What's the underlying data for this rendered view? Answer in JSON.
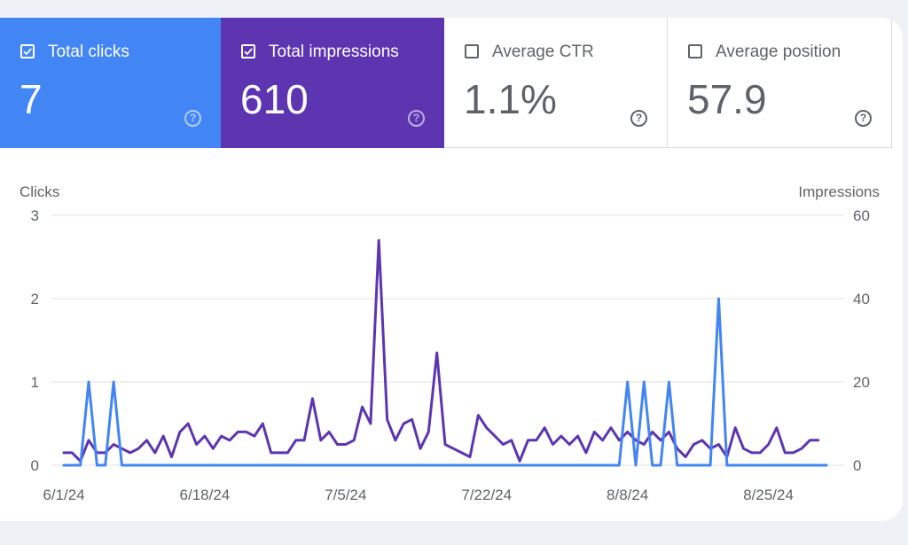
{
  "metrics": [
    {
      "label": "Total clicks",
      "value": "7",
      "checked": true,
      "color": "#4285f4"
    },
    {
      "label": "Total impressions",
      "value": "610",
      "checked": true,
      "color": "#5e35b1"
    },
    {
      "label": "Average CTR",
      "value": "1.1%",
      "checked": false
    },
    {
      "label": "Average position",
      "value": "57.9",
      "checked": false
    }
  ],
  "help_glyph": "?",
  "colors": {
    "clicks": "#4285f4",
    "impressions": "#5e35b1",
    "grid": "#e0e0e0"
  },
  "chart_data": {
    "type": "line",
    "xlabel": "",
    "ylabel": "Clicks",
    "y2label": "Impressions",
    "ylim": [
      0,
      3
    ],
    "y2lim": [
      0,
      60
    ],
    "yticks": [
      0,
      1,
      2,
      3
    ],
    "y2ticks": [
      0,
      20,
      40,
      60
    ],
    "x_tick_labels": [
      "6/1/24",
      "6/18/24",
      "7/5/24",
      "7/22/24",
      "8/8/24",
      "8/25/24"
    ],
    "x_tick_index": [
      0,
      17,
      34,
      51,
      68,
      85
    ],
    "grid": true,
    "series": [
      {
        "name": "Clicks",
        "axis": "left",
        "color": "#4285f4",
        "values": [
          0,
          0,
          0,
          1,
          0,
          0,
          1,
          0,
          0,
          0,
          0,
          0,
          0,
          0,
          0,
          0,
          0,
          0,
          0,
          0,
          0,
          0,
          0,
          0,
          0,
          0,
          0,
          0,
          0,
          0,
          0,
          0,
          0,
          0,
          0,
          0,
          0,
          0,
          0,
          0,
          0,
          0,
          0,
          0,
          0,
          0,
          0,
          0,
          0,
          0,
          0,
          0,
          0,
          0,
          0,
          0,
          0,
          0,
          0,
          0,
          0,
          0,
          0,
          0,
          0,
          0,
          0,
          0,
          1,
          0,
          1,
          0,
          0,
          1,
          0,
          0,
          0,
          0,
          0,
          2,
          0,
          0,
          0,
          0,
          0,
          0,
          0,
          0,
          0,
          0,
          0,
          0,
          0
        ]
      },
      {
        "name": "Impressions",
        "axis": "right",
        "color": "#5e35b1",
        "values": [
          3,
          3,
          1,
          6,
          3,
          3,
          5,
          4,
          3,
          4,
          6,
          3,
          7,
          2,
          8,
          10,
          5,
          7,
          4,
          7,
          6,
          8,
          8,
          7,
          10,
          3,
          3,
          3,
          6,
          6,
          16,
          6,
          8,
          5,
          5,
          6,
          14,
          10,
          54,
          11,
          6,
          10,
          11,
          4,
          8,
          27,
          5,
          4,
          3,
          2,
          12,
          9,
          7,
          5,
          6,
          1,
          6,
          6,
          9,
          5,
          7,
          5,
          7,
          3,
          8,
          6,
          9,
          6,
          8,
          6,
          5,
          8,
          6,
          8,
          4,
          2,
          5,
          6,
          4,
          5,
          2,
          9,
          4,
          3,
          3,
          5,
          9,
          3,
          3,
          4,
          6,
          6
        ]
      }
    ]
  }
}
